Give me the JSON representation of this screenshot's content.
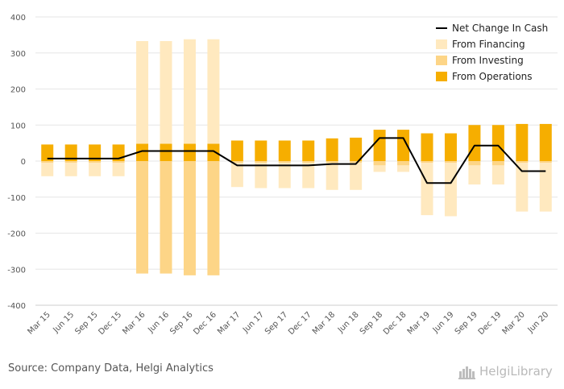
{
  "chart_data": {
    "type": "bar",
    "title": "",
    "xlabel": "",
    "ylabel": "",
    "ylim": [
      -400,
      400
    ],
    "yticks": [
      400,
      300,
      200,
      100,
      0,
      -100,
      -200,
      -300,
      -400
    ],
    "grid": true,
    "legend_position": "top-right",
    "categories": [
      "Mar 15",
      "Jun 15",
      "Sep 15",
      "Dec 15",
      "Mar 16",
      "Jun 16",
      "Sep 16",
      "Dec 16",
      "Mar 17",
      "Jun 17",
      "Sep 17",
      "Dec 17",
      "Mar 18",
      "Jun 18",
      "Sep 18",
      "Dec 18",
      "Mar 19",
      "Jun 19",
      "Sep 19",
      "Dec 19",
      "Mar 20",
      "Jun 20"
    ],
    "series": [
      {
        "name": "From Operations",
        "kind": "bar",
        "color": "#f6ae00",
        "values": [
          46,
          46,
          46,
          46,
          48,
          48,
          48,
          48,
          57,
          57,
          57,
          57,
          63,
          65,
          87,
          87,
          77,
          77,
          100,
          100,
          103,
          103
        ]
      },
      {
        "name": "From Investing",
        "kind": "bar",
        "color": "#fdd587",
        "values": [
          -5,
          -5,
          -5,
          -5,
          -312,
          -312,
          -317,
          -317,
          -5,
          -5,
          -5,
          -5,
          -5,
          -5,
          -12,
          -12,
          -5,
          -5,
          -12,
          -12,
          -5,
          -5
        ]
      },
      {
        "name": "From Financing",
        "kind": "bar",
        "color": "#ffe9bf",
        "values": [
          -37,
          -37,
          -37,
          -37,
          285,
          285,
          290,
          290,
          -67,
          -70,
          -70,
          -70,
          -75,
          -75,
          -18,
          -18,
          -145,
          -148,
          -53,
          -53,
          -135,
          -135
        ]
      },
      {
        "name": "Net Change In Cash",
        "kind": "line",
        "color": "#000000",
        "values": [
          7,
          7,
          7,
          7,
          28,
          28,
          28,
          28,
          -12,
          -12,
          -12,
          -12,
          -8,
          -8,
          64,
          64,
          -61,
          -61,
          43,
          43,
          -28,
          -28
        ]
      }
    ]
  },
  "footer": {
    "source": "Source: Company Data, Helgi Analytics",
    "logo_text": "HelgiLibrary"
  }
}
